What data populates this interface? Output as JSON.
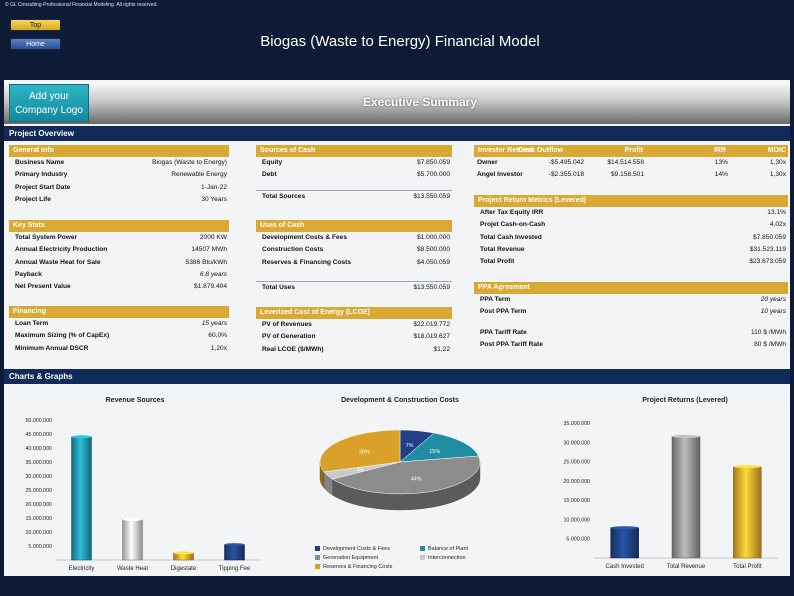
{
  "header": {
    "copyright": "© GL Consulting-Professional Financial Modeling. All rights reserved.",
    "top_button": "Top",
    "home_button": "Home",
    "title": "Biogas (Waste to Energy) Financial Model"
  },
  "banner": {
    "logo_text_line1": "Add your",
    "logo_text_line2": "Company Logo",
    "title": "Executive Summary"
  },
  "project_overview": {
    "title": "Project Overview",
    "general_info": {
      "title": "General Info",
      "rows": [
        {
          "label": "Business Name",
          "value": "Biogas (Waste to Energy)"
        },
        {
          "label": "Primary Industry",
          "value": "Renewable Energy"
        },
        {
          "label": "Project Start Date",
          "value": "1-Jan-22"
        },
        {
          "label": "Project Life",
          "value": "30 Years"
        }
      ]
    },
    "key_stats": {
      "title": "Key Stats",
      "rows": [
        {
          "label": "Total System Power",
          "value": "2000 KW"
        },
        {
          "label": "Annual Electricity Production",
          "value": "14507 MWh"
        },
        {
          "label": "Annual Waste Heat for Sale",
          "value": "5386 Btu/kWh"
        },
        {
          "label": "Payback",
          "value": "6,8 years"
        },
        {
          "label": "Net Present Value",
          "value": "$1.879.404"
        }
      ]
    },
    "financing": {
      "title": "Financing",
      "rows": [
        {
          "label": "Loan Term",
          "value": "15 years"
        },
        {
          "label": "Maximum Sizing (% of CapEx)",
          "value": "60,0%"
        },
        {
          "label": "Minimum Annual DSCR",
          "value": "1,20x"
        }
      ]
    },
    "sources_of_cash": {
      "title": "Sources of Cash",
      "rows": [
        {
          "label": "Equity",
          "value": "$7.850.059"
        },
        {
          "label": "Debt",
          "value": "$5.700.000"
        }
      ],
      "total": {
        "label": "Total Sources",
        "value": "$13.550.059"
      }
    },
    "uses_of_cash": {
      "title": "Uses of Cash",
      "rows": [
        {
          "label": "Development Costs & Fees",
          "value": "$1.000.000"
        },
        {
          "label": "Construction Costs",
          "value": "$8.500.000"
        },
        {
          "label": "Reserves & Financing Costs",
          "value": "$4.050.059"
        }
      ],
      "total": {
        "label": "Total Uses",
        "value": "$13.550.059"
      }
    },
    "lcoe": {
      "title": "Leverized Cost of Energy (LCOE)",
      "rows": [
        {
          "label": "PV of Revenues",
          "value": "$22.019.772"
        },
        {
          "label": "PV of Generation",
          "value": "$18.019.627"
        },
        {
          "label": "Real LCOE  ($/MWh)",
          "value": "$1,22"
        }
      ]
    },
    "investor_returns": {
      "title": "Investor Returns",
      "columns": [
        "Cash Outflow",
        "Profit",
        "IRR",
        "MOIC"
      ],
      "rows": [
        {
          "label": "Owner",
          "cash_outflow": "-$5.495.042",
          "profit": "$14.514.558",
          "irr": "13%",
          "moic": "1,30x"
        },
        {
          "label": "Angel Investor",
          "cash_outflow": "-$2.355.018",
          "profit": "$9.158.501",
          "irr": "14%",
          "moic": "1,30x"
        }
      ]
    },
    "project_return_metrics": {
      "title": "Project Return Metrics (Levered)",
      "rows": [
        {
          "label": "After Tax Equity IRR",
          "value": "13,1%"
        },
        {
          "label": "Projet Cash-on-Cash",
          "value": "4,02x"
        },
        {
          "label": "Total Cash Invested",
          "value": "$7.850.059"
        },
        {
          "label": "Total Revenue",
          "value": "$31.523.119"
        },
        {
          "label": "Total Profit",
          "value": "$23.673.059"
        }
      ]
    },
    "ppa_agreement": {
      "title": "PPA Agreement",
      "rows": [
        {
          "label": "PPA Term",
          "value": "20 years"
        },
        {
          "label": "Post PPA Term",
          "value": "10 years"
        },
        {
          "label": "PPA Tariff Rate",
          "value": "110 $ /MWh"
        },
        {
          "label": "Post PPA Tariff Rate",
          "value": "80 $ /MWh"
        }
      ]
    }
  },
  "charts_section": {
    "title": "Charts & Graphs"
  },
  "chart_data": [
    {
      "type": "bar",
      "title": "Revenue Sources",
      "categories": [
        "Electricity",
        "Waste Heat",
        "Digestate",
        "Tipping Fee"
      ],
      "values": [
        44000000,
        14500000,
        2500000,
        5500000
      ],
      "yticks": [
        "50.000.000",
        "45.000.000",
        "40.000.000",
        "35.000.000",
        "30.000.000",
        "25.000.000",
        "20.000.000",
        "15.000.000",
        "10.000.000",
        "5.000.000"
      ],
      "ylim": [
        0,
        50000000
      ],
      "colors": [
        "#1f8ea3",
        "#c9c9c9",
        "#d9a12a",
        "#1d3f7c"
      ],
      "grid": false
    },
    {
      "type": "pie",
      "title": "Development & Construction Costs",
      "categories": [
        "Development Costs & Fees",
        "Balance of Plant",
        "Generation Equipment",
        "Interconnection",
        "Reserves & Financing Costs"
      ],
      "values": [
        7,
        15,
        44,
        4,
        30
      ],
      "labels": [
        "7%",
        "15%",
        "44%",
        "4%",
        "30%"
      ],
      "colors": [
        "#1f3f86",
        "#1f8ea3",
        "#8c8c8c",
        "#c9c9c9",
        "#d9a12a"
      ],
      "legend": "bottom"
    },
    {
      "type": "bar",
      "title": "Project Returns (Levered)",
      "categories": [
        "Cash Invested",
        "Total Revenue",
        "Total Profit"
      ],
      "values": [
        7850059,
        31523119,
        23673059
      ],
      "yticks": [
        "35.000.000",
        "30.000.000",
        "25.000.000",
        "20.000.000",
        "15.000.000",
        "10.000.000",
        "5.000.000"
      ],
      "ylim": [
        0,
        35000000
      ],
      "colors": [
        "#1d3f7c",
        "#8c8c8c",
        "#d9a12a"
      ],
      "grid": false
    }
  ]
}
